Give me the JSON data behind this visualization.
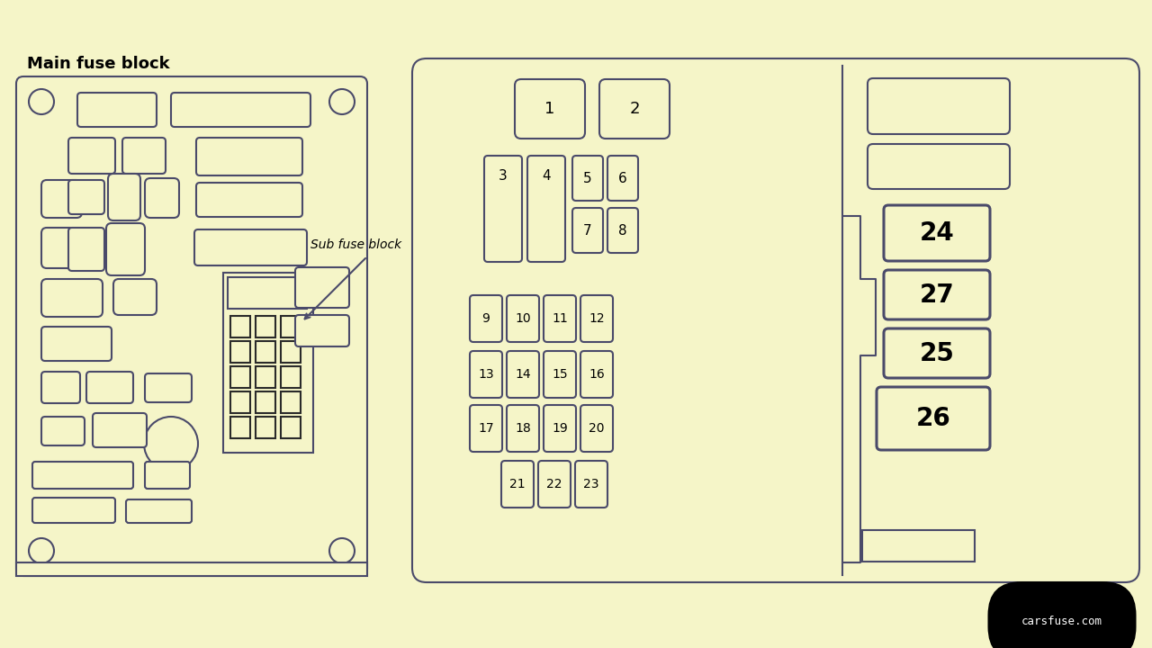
{
  "bg_color": "#f5f5c8",
  "line_color": "#4a4a6a",
  "title": "Main fuse block",
  "sub_label": "Sub fuse block",
  "watermark": "carsfuse.com"
}
